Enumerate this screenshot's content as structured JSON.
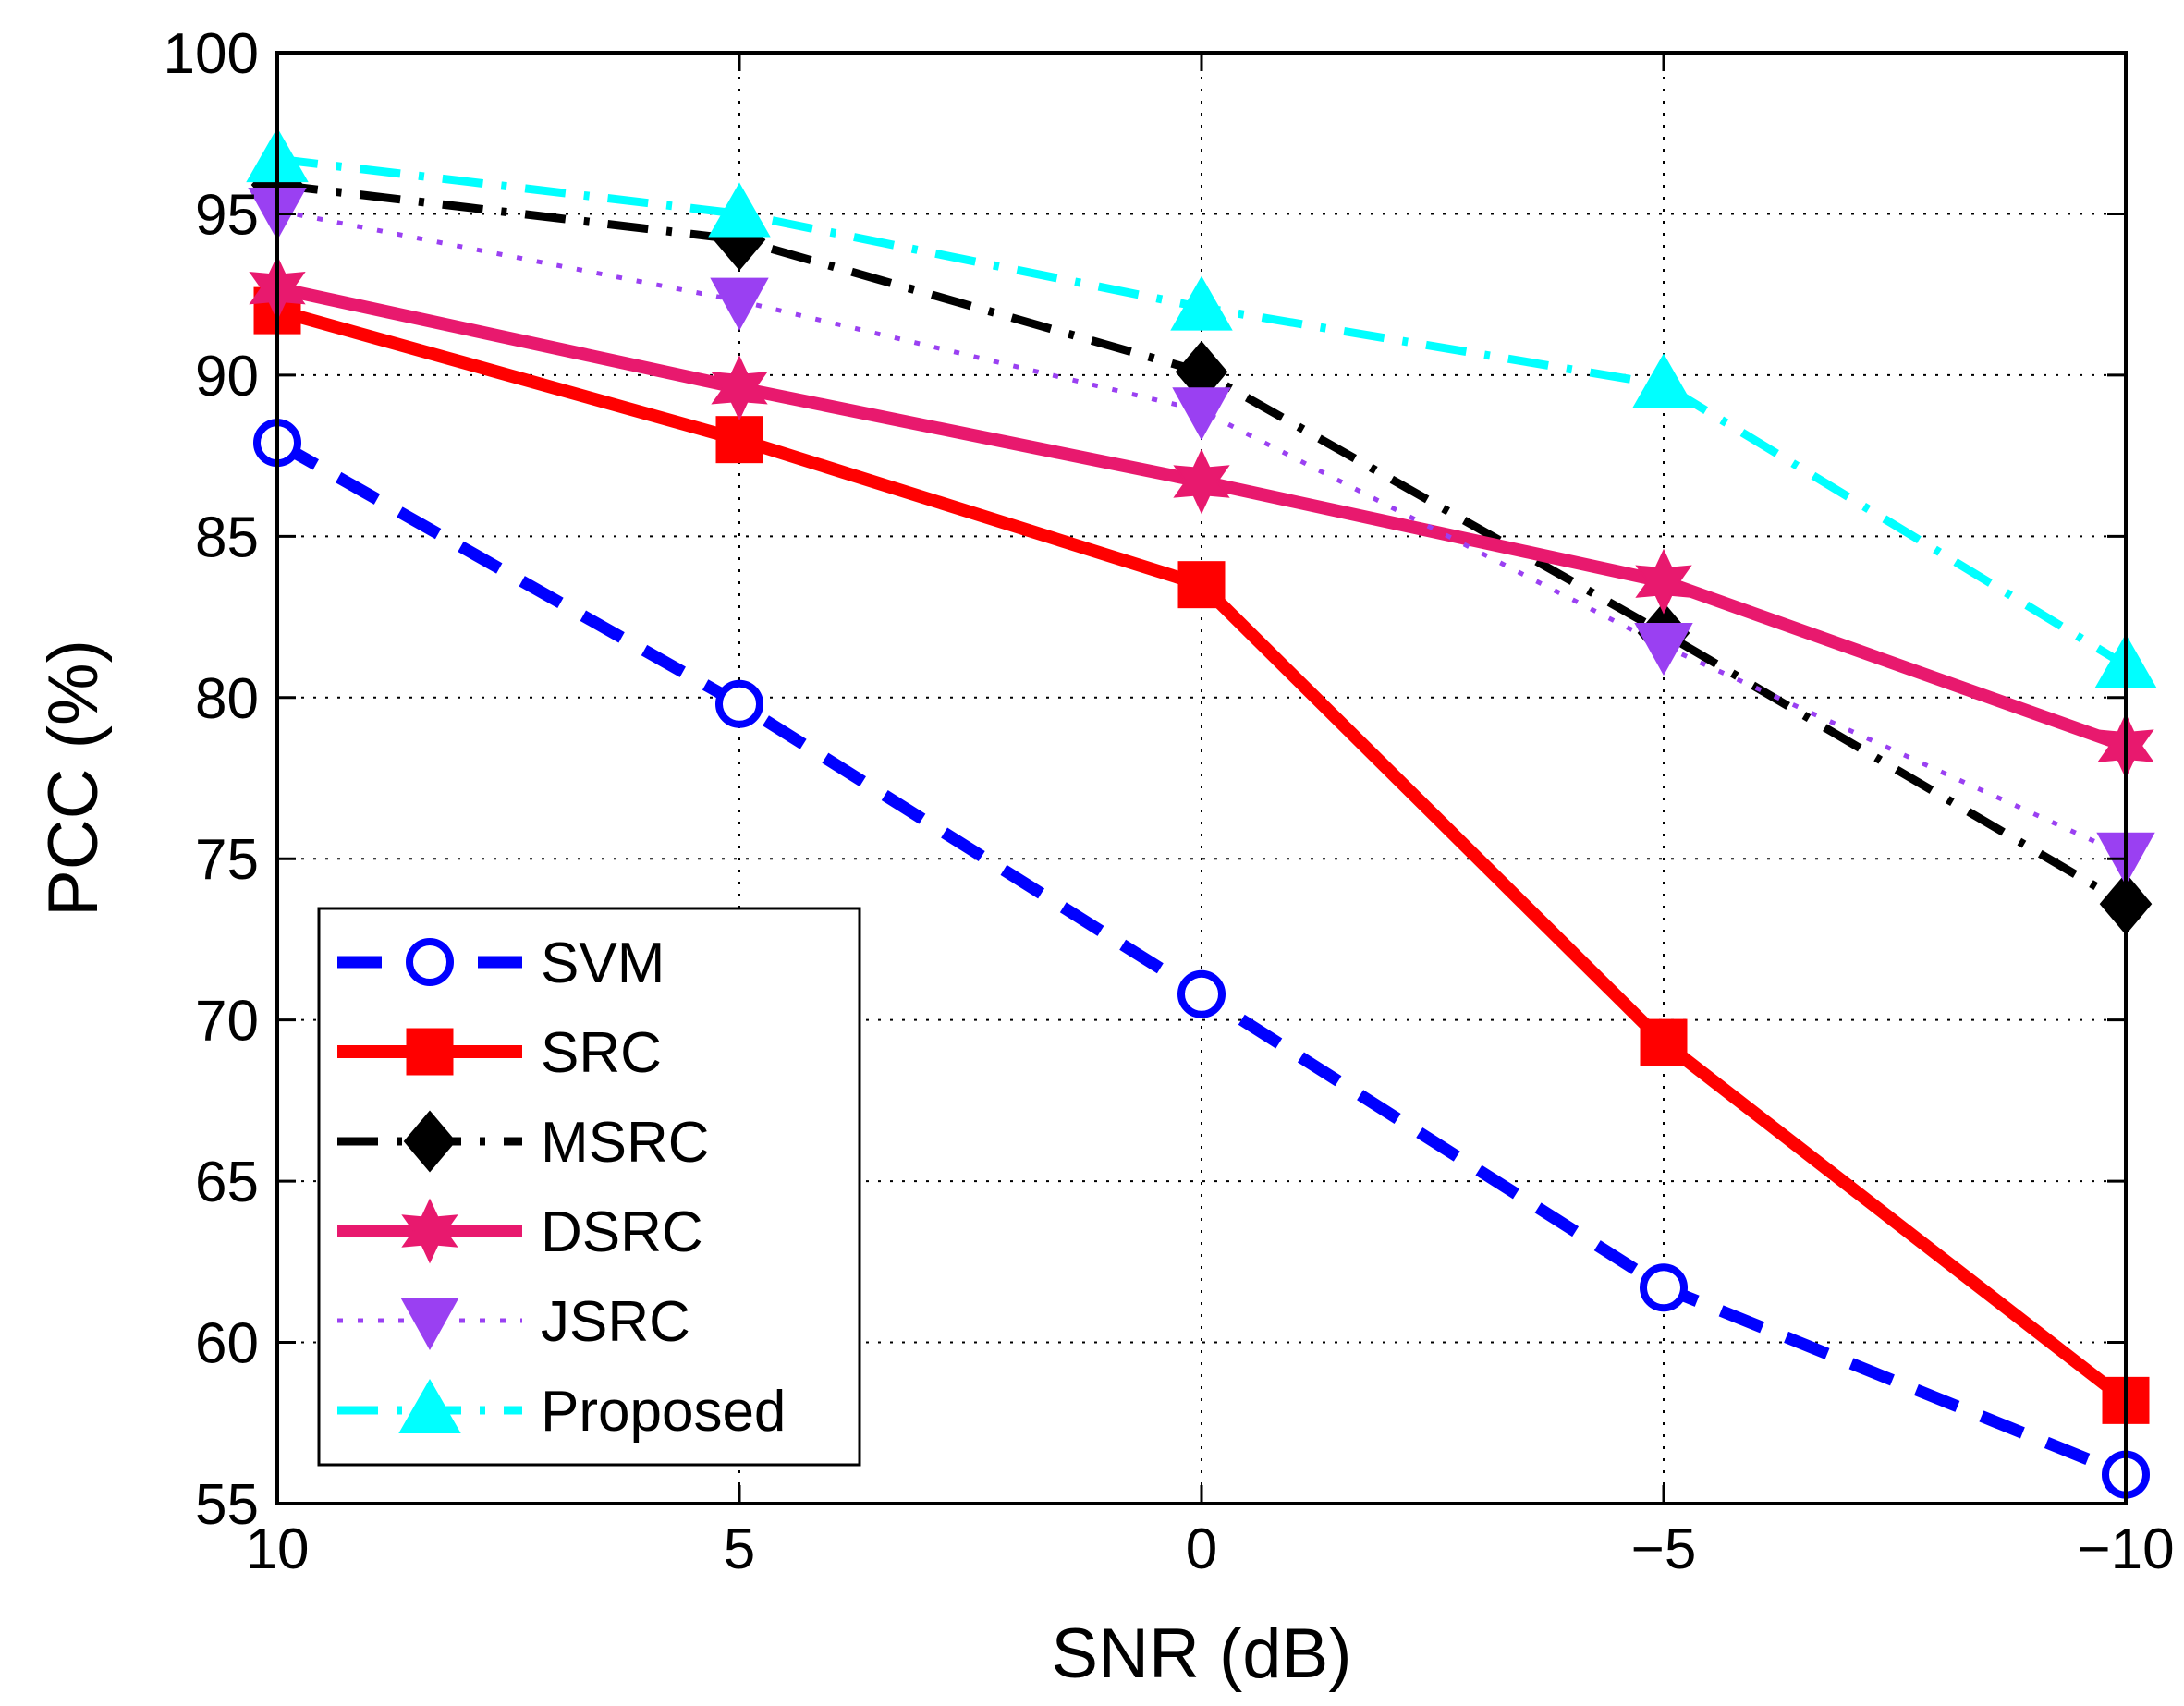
{
  "chart_data": {
    "type": "line",
    "title": "",
    "xlabel": "SNR (dB)",
    "ylabel": "PCC (%)",
    "x": [
      10,
      5,
      0,
      -5,
      -10
    ],
    "x_tick_labels": [
      "10",
      "5",
      "0",
      "−5",
      "−10"
    ],
    "y_tick_labels": [
      "55",
      "60",
      "65",
      "70",
      "75",
      "80",
      "85",
      "90",
      "95",
      "100"
    ],
    "xlim": [
      10,
      -10
    ],
    "ylim": [
      55,
      100
    ],
    "grid": true,
    "legend_position": "bottom-left",
    "series": [
      {
        "name": "SVM",
        "values": [
          87.9,
          79.8,
          70.8,
          61.7,
          55.9
        ],
        "color": "#0000ff",
        "dash": "dashed",
        "marker": "circle-open"
      },
      {
        "name": "SRC",
        "values": [
          92.0,
          88.0,
          83.5,
          69.3,
          58.2
        ],
        "color": "#ff0000",
        "dash": "solid",
        "marker": "square"
      },
      {
        "name": "MSRC",
        "values": [
          95.9,
          94.2,
          90.1,
          82.0,
          73.6
        ],
        "color": "#000000",
        "dash": "dashdot",
        "marker": "diamond"
      },
      {
        "name": "DSRC",
        "values": [
          92.7,
          89.6,
          86.7,
          83.6,
          78.5
        ],
        "color": "#e8196e",
        "dash": "solid",
        "marker": "hexagram"
      },
      {
        "name": "JSRC",
        "values": [
          95.1,
          92.3,
          88.9,
          81.6,
          75.1
        ],
        "color": "#9a40f2",
        "dash": "dotted",
        "marker": "triangle-down"
      },
      {
        "name": "Proposed",
        "values": [
          96.7,
          95.0,
          92.1,
          89.7,
          81.0
        ],
        "color": "#00ffff",
        "dash": "dashdot",
        "marker": "triangle-up"
      }
    ]
  }
}
